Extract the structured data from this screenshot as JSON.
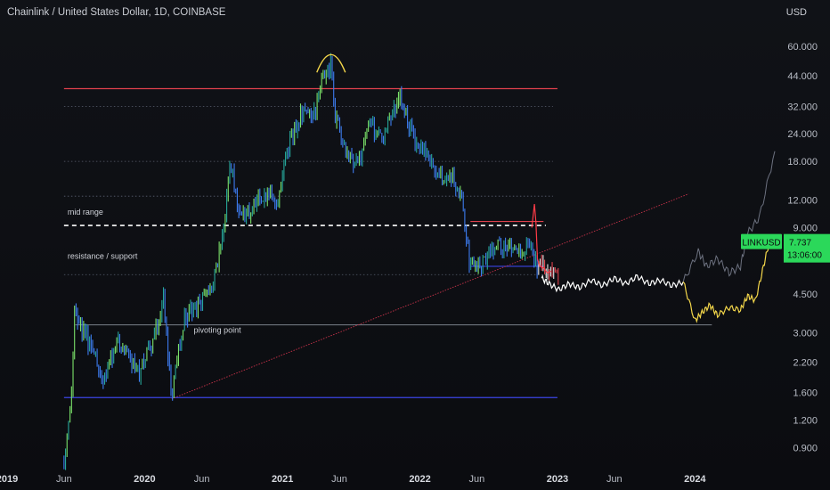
{
  "header": {
    "title": "Chainlink / United States Dollar, 1D, COINBASE",
    "currency": "USD"
  },
  "badge": {
    "symbol": "LINKUSD",
    "price": "7.737",
    "countdown": "13:06:00"
  },
  "colors": {
    "up": "#26a69a",
    "bull": "#7be36a",
    "down": "#3d7cf0",
    "resistance": "#e0414d",
    "support": "#3b44e6",
    "mid": "#ffffff",
    "projection": "#f3d64a",
    "bullish": "#2bd85a"
  },
  "chart_data": {
    "type": "line",
    "scale": "log",
    "ylim": [
      0.75,
      75
    ],
    "y_ticks": [
      "60.000",
      "44.000",
      "32.000",
      "24.000",
      "18.000",
      "12.000",
      "9.000",
      "4.500",
      "3.000",
      "2.200",
      "1.600",
      "1.200",
      "0.900"
    ],
    "x_ticks": [
      {
        "label": "2019",
        "year": true
      },
      {
        "label": "Jun",
        "year": false
      },
      {
        "label": "2020",
        "year": true
      },
      {
        "label": "Jun",
        "year": false
      },
      {
        "label": "2021",
        "year": true
      },
      {
        "label": "Jun",
        "year": false
      },
      {
        "label": "2022",
        "year": true
      },
      {
        "label": "Jun",
        "year": false
      },
      {
        "label": "2023",
        "year": true
      },
      {
        "label": "Jun",
        "year": false
      },
      {
        "label": "2024",
        "year": true
      }
    ],
    "x_range": [
      "2019-01-01",
      "2024-07-31"
    ],
    "price_series": {
      "name": "LINKUSD",
      "x": [
        "2019-06-01",
        "2019-06-20",
        "2019-06-29",
        "2019-07-15",
        "2019-08-20",
        "2019-09-10",
        "2019-10-20",
        "2019-11-20",
        "2019-12-20",
        "2020-01-20",
        "2020-02-20",
        "2020-03-13",
        "2020-04-15",
        "2020-05-20",
        "2020-06-25",
        "2020-07-25",
        "2020-08-15",
        "2020-09-10",
        "2020-10-15",
        "2020-11-20",
        "2020-12-20",
        "2021-01-20",
        "2021-02-20",
        "2021-03-20",
        "2021-04-15",
        "2021-05-10",
        "2021-05-20",
        "2021-06-22",
        "2021-07-20",
        "2021-08-20",
        "2021-09-20",
        "2021-10-20",
        "2021-11-10",
        "2021-12-20",
        "2022-01-20",
        "2022-02-20",
        "2022-03-20",
        "2022-04-20",
        "2022-05-12",
        "2022-06-20",
        "2022-07-20",
        "2022-08-20",
        "2022-09-20",
        "2022-10-20",
        "2022-11-09",
        "2022-11-20",
        "2022-12-20",
        "2023-01-05"
      ],
      "y": [
        0.8,
        1.4,
        4.0,
        3.2,
        2.5,
        1.7,
        2.8,
        2.3,
        2.0,
        2.6,
        4.2,
        1.6,
        3.5,
        4.0,
        4.6,
        8.0,
        18.0,
        10.0,
        11.0,
        13.0,
        12.0,
        22.0,
        30.0,
        28.0,
        40.0,
        50.0,
        30.0,
        19.0,
        17.0,
        27.0,
        23.0,
        30.0,
        35.0,
        22.0,
        19.0,
        15.0,
        16.0,
        13.0,
        6.5,
        6.2,
        7.5,
        7.3,
        7.1,
        7.6,
        5.8,
        6.2,
        5.6,
        5.4
      ]
    },
    "hist_overlay": {
      "x": [
        "2022-10-25",
        "2022-11-01",
        "2022-11-05",
        "2022-11-09",
        "2022-11-15",
        "2022-11-25",
        "2022-12-05",
        "2022-12-15"
      ],
      "y": [
        9.0,
        11.5,
        9.5,
        6.5,
        6.0,
        5.9,
        5.6,
        5.7
      ]
    },
    "forecast_white": {
      "x": [
        "2022-11-20",
        "2022-12-10",
        "2023-01-05",
        "2023-02-01",
        "2023-03-01",
        "2023-04-01",
        "2023-05-01",
        "2023-06-01",
        "2023-07-01",
        "2023-08-01",
        "2023-09-01",
        "2023-10-01",
        "2023-11-01",
        "2023-12-01"
      ],
      "y": [
        5.3,
        5.0,
        4.7,
        5.0,
        4.8,
        5.2,
        4.9,
        5.3,
        5.0,
        5.4,
        5.0,
        5.2,
        4.9,
        5.1
      ]
    },
    "forecast_yellow": {
      "x": [
        "2023-12-01",
        "2024-01-01",
        "2024-01-20",
        "2024-02-10",
        "2024-03-01",
        "2024-04-01",
        "2024-05-01",
        "2024-05-20",
        "2024-06-10",
        "2024-07-01",
        "2024-07-20"
      ],
      "y": [
        5.1,
        3.4,
        3.7,
        4.0,
        3.6,
        3.9,
        3.8,
        4.4,
        4.2,
        6.0,
        8.2
      ]
    },
    "forecast_gray": {
      "x": [
        "2023-12-01",
        "2024-01-10",
        "2024-02-01",
        "2024-03-01",
        "2024-04-01",
        "2024-05-01",
        "2024-05-20",
        "2024-06-20",
        "2024-07-31"
      ],
      "y": [
        5.1,
        7.0,
        6.0,
        6.5,
        5.6,
        6.0,
        8.5,
        10.0,
        20.0
      ]
    },
    "levels": [
      {
        "kind": "resistance",
        "y": 38.5,
        "x_from": "2019-06-01",
        "x_to": "2023-01-01"
      },
      {
        "kind": "mid",
        "y": 9.2,
        "x_from": "2019-06-01",
        "x_to": "2022-12-01"
      },
      {
        "kind": "support",
        "y": 1.52,
        "x_from": "2019-06-01",
        "x_to": "2023-01-01"
      },
      {
        "kind": "pivot",
        "y": 3.25,
        "x_from": "2019-07-01",
        "x_to": "2024-02-15"
      },
      {
        "kind": "range_top",
        "y": 9.6,
        "x_from": "2022-05-15",
        "x_to": "2022-11-25"
      },
      {
        "kind": "range_bottom",
        "y": 6.0,
        "x_from": "2022-05-15",
        "x_to": "2022-11-25"
      }
    ],
    "dotted_levels": [
      32.0,
      18.0,
      12.5,
      5.5
    ],
    "trendline": {
      "from": [
        "2020-03-13",
        1.5
      ],
      "to": [
        "2023-12-15",
        12.8
      ]
    },
    "top_arc": {
      "x": "2021-05-10",
      "y": 52.0
    },
    "annotations": [
      {
        "text": "mid range",
        "x": "2019-06-01",
        "y": 10.3
      },
      {
        "text": "resistance / support",
        "x": "2019-06-01",
        "y": 6.5
      },
      {
        "text": "pivoting point",
        "x": "2020-05-01",
        "y": 3.0
      }
    ]
  }
}
